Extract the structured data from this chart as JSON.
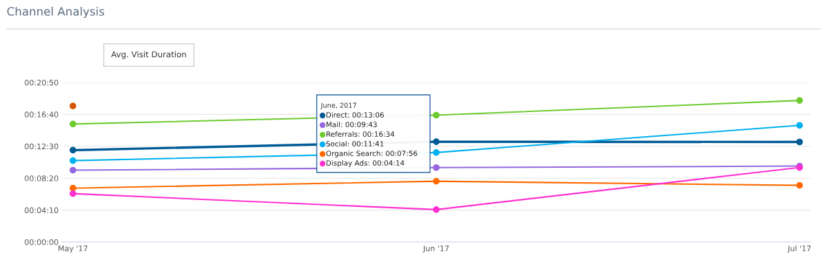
{
  "chart_data": {
    "type": "line",
    "title": "Channel Analysis",
    "subtitle": "Avg. Visit Duration",
    "categories": [
      "May '17",
      "Jun '17",
      "Jul '17"
    ],
    "series": [
      {
        "color": "#005b96",
        "values": [
          720,
          786,
          784
        ]
      },
      {
        "color": "#9466e0",
        "values": [
          563,
          583,
          595
        ]
      },
      {
        "color": "#6ccb2f",
        "values": [
          925,
          994,
          1109
        ]
      },
      {
        "color": "#00b0f0",
        "values": [
          638,
          701,
          914
        ]
      },
      {
        "color": "#ff6a00",
        "values": [
          422,
          476,
          444
        ]
      },
      {
        "color": "#ff2fd0",
        "values": [
          379,
          254,
          584
        ]
      },
      {
        "color": "#d35400",
        "values": [
          1066,
          null,
          null
        ]
      }
    ],
    "annotations": [
      "June, 2017",
      "Direct: 00:13:06",
      "Mail: 00:09:43",
      "Referrals: 00:16:34",
      "Social: 00:11:41",
      "Organic Search: 00:07:56",
      "Display Ads: 00:04:14"
    ],
    "ylim": [
      0,
      1250
    ],
    "yticks": [
      {
        "value": 0,
        "label": "00:00:00"
      },
      {
        "value": 250,
        "label": "00:04:10"
      },
      {
        "value": 500,
        "label": "00:08:20"
      },
      {
        "value": 750,
        "label": "00:12:30"
      },
      {
        "value": 1000,
        "label": "00:16:40"
      },
      {
        "value": 1250,
        "label": "00:20:50"
      }
    ],
    "grid": "y",
    "marker": "circle",
    "line_style": "solid"
  }
}
